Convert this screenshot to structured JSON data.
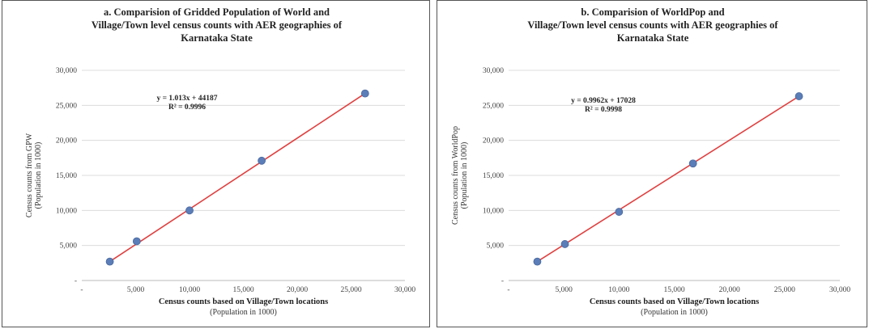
{
  "chart_data": [
    {
      "type": "scatter",
      "title_lines": [
        "a. Comparision of Gridded Population of World and",
        "Village/Town level census counts with AER geographies of",
        "Karnataka State"
      ],
      "xlabel": "Census counts based on Village/Town locations",
      "xlabel_sub": "(Population in 1000)",
      "ylabel": "Census counts from GPW",
      "ylabel_sub": "(Population in 1000)",
      "xlim": [
        0,
        30000
      ],
      "ylim": [
        0,
        30000
      ],
      "xticks": [
        0,
        5000,
        10000,
        15000,
        20000,
        25000,
        30000
      ],
      "xtick_labels": [
        "-",
        "5,000",
        "10,000",
        "15,000",
        "20,000",
        "25,000",
        "30,000"
      ],
      "yticks": [
        0,
        5000,
        10000,
        15000,
        20000,
        25000,
        30000
      ],
      "ytick_labels": [
        "-",
        "5,000",
        "10,000",
        "15,000",
        "20,000",
        "25,000",
        "30,000"
      ],
      "grid": true,
      "x": [
        2600,
        5100,
        10000,
        16700,
        26300
      ],
      "y": [
        2700,
        5600,
        10000,
        17100,
        26700
      ],
      "trendline": {
        "slope": 1.013,
        "intercept": 44.187,
        "x_range": [
          2600,
          26300
        ]
      },
      "equation": "y = 1.013x + 44187",
      "r2": "R² = 0.9996",
      "marker_color": "#5b7db8",
      "line_color": "#e04040"
    },
    {
      "type": "scatter",
      "title_lines": [
        "b. Comparision of WorldPop and",
        "Village/Town level census counts with AER geographies of",
        "Karnataka State"
      ],
      "xlabel": "Census counts based on Village/Town locations",
      "xlabel_sub": "(Population in 1000)",
      "ylabel": "Census counts from WorldPop",
      "ylabel_sub": "(Population in 1000)",
      "xlim": [
        0,
        30000
      ],
      "ylim": [
        0,
        30000
      ],
      "xticks": [
        0,
        5000,
        10000,
        15000,
        20000,
        25000,
        30000
      ],
      "xtick_labels": [
        "-",
        "5,000",
        "10,000",
        "15,000",
        "20,000",
        "25,000",
        "30,000"
      ],
      "yticks": [
        0,
        5000,
        10000,
        15000,
        20000,
        25000,
        30000
      ],
      "ytick_labels": [
        "-",
        "5,000",
        "10,000",
        "15,000",
        "20,000",
        "25,000",
        "30,000"
      ],
      "grid": true,
      "x": [
        2600,
        5100,
        10000,
        16700,
        26300
      ],
      "y": [
        2700,
        5200,
        9800,
        16700,
        26300
      ],
      "trendline": {
        "slope": 0.9962,
        "intercept": 17.028,
        "x_range": [
          2600,
          26300
        ]
      },
      "equation": "y = 0.9962x + 17028",
      "r2": "R² = 0.9998",
      "marker_color": "#5b7db8",
      "line_color": "#e04040"
    }
  ]
}
